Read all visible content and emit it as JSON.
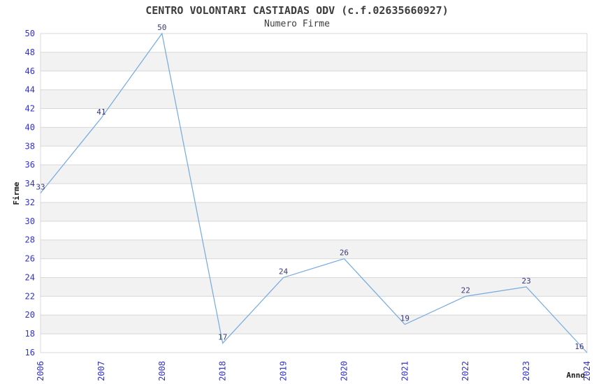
{
  "chart_data": {
    "type": "line",
    "title": "CENTRO VOLONTARI CASTIADAS ODV (c.f.02635660927)",
    "subtitle": "Numero Firme",
    "xlabel": "Anno",
    "ylabel": "Firme",
    "categories": [
      "2006",
      "2007",
      "2008",
      "2018",
      "2019",
      "2020",
      "2021",
      "2022",
      "2023",
      "2024"
    ],
    "values": [
      33,
      41,
      50,
      17,
      24,
      26,
      19,
      22,
      23,
      16
    ],
    "ylim": [
      16,
      50
    ],
    "ytick_step": 2,
    "grid": "horizontal-bands",
    "legend": "none",
    "point_markers": false,
    "x_labels_rotated_degrees": 90,
    "colors": {
      "line": "#74a9e4",
      "tick_label": "#3232cc",
      "data_label": "#383878",
      "title_text": "#3d3d3d",
      "axis_title_text": "#1a1a1a",
      "band_fill": "#f2f2f2",
      "gridline": "#d8d8d8",
      "background": "#ffffff"
    }
  }
}
